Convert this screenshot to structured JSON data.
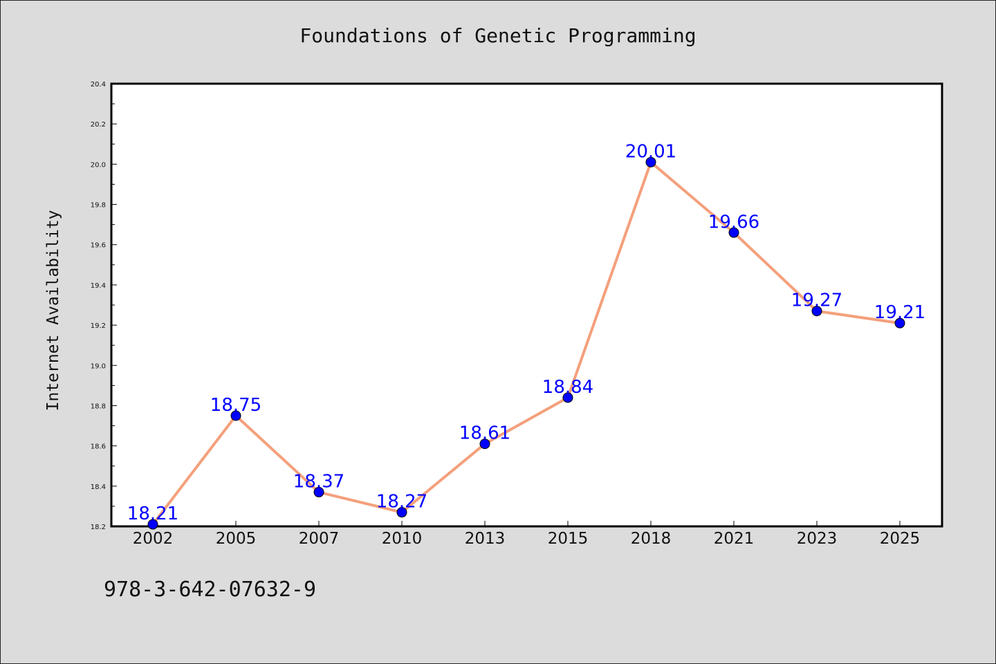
{
  "chart_data": {
    "type": "line",
    "title": "Foundations of Genetic Programming",
    "xlabel": "",
    "ylabel": "Internet Availability",
    "categories": [
      "2002",
      "2005",
      "2007",
      "2010",
      "2013",
      "2015",
      "2018",
      "2021",
      "2023",
      "2025"
    ],
    "series": [
      {
        "values": [
          18.21,
          18.75,
          18.37,
          18.27,
          18.61,
          18.84,
          20.01,
          19.66,
          19.27,
          19.21
        ]
      }
    ],
    "data_labels": [
      "18.21",
      "18.75",
      "18.37",
      "18.27",
      "18.61",
      "18.84",
      "20.01",
      "19.66",
      "19.27",
      "19.21"
    ],
    "yticks": [
      "18.2",
      "18.4",
      "18.6",
      "18.8",
      "19.0",
      "19.2",
      "19.4",
      "19.6",
      "19.8",
      "20.0",
      "20.2",
      "20.4"
    ],
    "ylim": [
      18.2,
      20.4
    ],
    "grid": false,
    "colors": {
      "line": "#f4a07c",
      "marker": "#0000ff",
      "label": "#0000ff",
      "plot_bg": "#ffffff",
      "page_bg": "#dcdcdc"
    }
  },
  "footnote": "978-3-642-07632-9"
}
